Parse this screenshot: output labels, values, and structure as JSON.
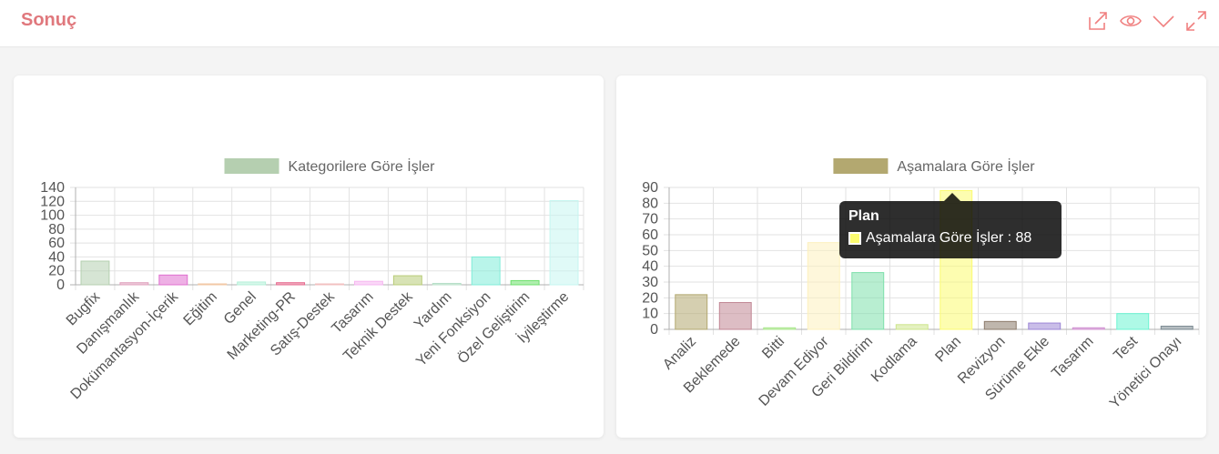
{
  "header": {
    "title": "Sonuç",
    "icons": [
      "share-icon",
      "eye-icon",
      "chevron-down-icon",
      "expand-icon"
    ]
  },
  "colors": {
    "title": "#e0787d",
    "icon": "#f08080"
  },
  "chart_data": [
    {
      "type": "bar",
      "legend": "Kategorilere Göre İşler",
      "legend_color": "#b5cfb0",
      "ylim": [
        0,
        140
      ],
      "yticks": [
        0,
        20,
        40,
        60,
        80,
        100,
        120,
        140
      ],
      "categories": [
        "Bugfix",
        "Danışmanlık",
        "Dokümantasyon-İçerik",
        "Eğitim",
        "Genel",
        "Marketing-PR",
        "Satış-Destek",
        "Tasarım",
        "Teknik Destek",
        "Yardım",
        "Yeni Fonksiyon",
        "Özel Geliştirim",
        "İyileştirme"
      ],
      "values": [
        34,
        3,
        14,
        1,
        4,
        3,
        1,
        5,
        13,
        2,
        40,
        6,
        121
      ],
      "colors": [
        "#b5cfb0",
        "#e0a1bd",
        "#e06fd0",
        "#f2c8a6",
        "#b4f0d8",
        "#e66a8e",
        "#f2c0c0",
        "#f6b6f0",
        "#b8cc78",
        "#b8e0c8",
        "#80ecd8",
        "#6de06c",
        "#c6f6f0"
      ],
      "grid": true
    },
    {
      "type": "bar",
      "legend": "Aşamalara Göre İşler",
      "legend_color": "#b3a870",
      "ylim": [
        0,
        90
      ],
      "yticks": [
        0,
        10,
        20,
        30,
        40,
        50,
        60,
        70,
        80,
        90
      ],
      "categories": [
        "Analiz",
        "Beklemede",
        "Bitti",
        "Devam Ediyor",
        "Geri Bildirim",
        "Kodlama",
        "Plan",
        "Revizyon",
        "Sürüme Ekle",
        "Tasarım",
        "Test",
        "Yönetici Onayı"
      ],
      "values": [
        22,
        17,
        1,
        55,
        36,
        3,
        88,
        5,
        4,
        1,
        10,
        2
      ],
      "colors": [
        "#b3a870",
        "#c18694",
        "#a8e68a",
        "#fdf1bd",
        "#7ee0ab",
        "#cde58c",
        "#fcfc70",
        "#8b7a6a",
        "#9c86d6",
        "#cf8fd0",
        "#6cf4d2",
        "#7a8890"
      ],
      "grid": true,
      "tooltip": {
        "title": "Plan",
        "label": "Aşamalara Göre İşler : 88"
      }
    }
  ]
}
